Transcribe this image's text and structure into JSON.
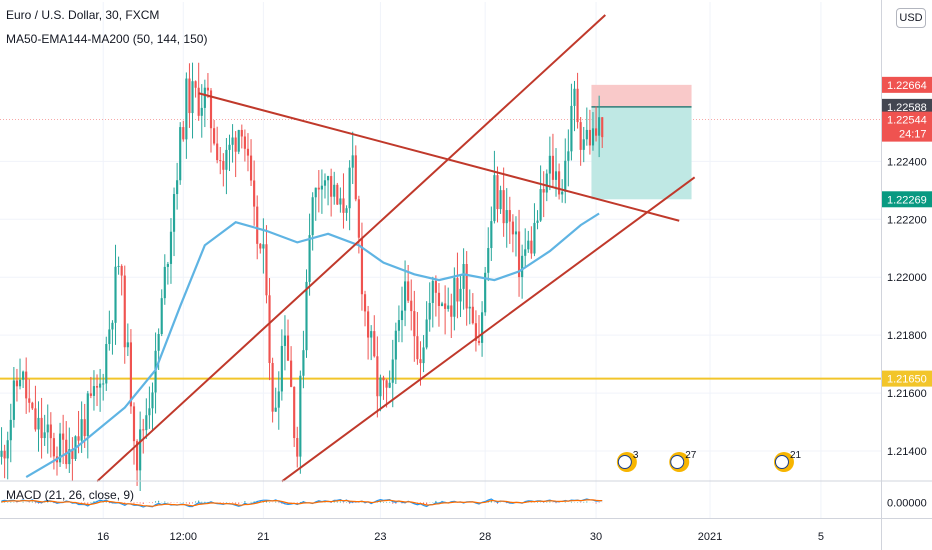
{
  "header": {
    "symbol_line": "Euro / U.S. Dollar, 30, FXCM",
    "indicator_line": "MA50-EMA144-MA200 (50, 144, 150)",
    "currency_button": "USD"
  },
  "chart_data": {
    "type": "candlestick",
    "title": "Euro / U.S. Dollar, 30, FXCM",
    "price_axis": {
      "ticks": [
        1.224,
        1.222,
        1.22,
        1.218,
        1.216,
        1.214
      ],
      "tick_labels": [
        "1.22400",
        "1.22200",
        "1.22000",
        "1.21800",
        "1.21600",
        "1.21400"
      ],
      "ylim": [
        1.213,
        1.2295
      ]
    },
    "time_axis": {
      "labels": [
        {
          "text": "16",
          "bar": 33
        },
        {
          "text": "12:00",
          "bar": 59
        },
        {
          "text": "21",
          "bar": 85
        },
        {
          "text": "23",
          "bar": 123
        },
        {
          "text": "28",
          "bar": 157
        },
        {
          "text": "30",
          "bar": 193
        },
        {
          "text": "2021",
          "bar": 230
        },
        {
          "text": "5",
          "bar": 266
        }
      ],
      "total_bars": 286
    },
    "candles": {
      "seed": 11,
      "count": 196,
      "anchors": [
        [
          0,
          1.2138
        ],
        [
          6,
          1.2168
        ],
        [
          10,
          1.215
        ],
        [
          18,
          1.214
        ],
        [
          24,
          1.2144
        ],
        [
          32,
          1.2162
        ],
        [
          38,
          1.2205
        ],
        [
          44,
          1.2138
        ],
        [
          50,
          1.217
        ],
        [
          56,
          1.223
        ],
        [
          60,
          1.2262
        ],
        [
          66,
          1.2262
        ],
        [
          72,
          1.2238
        ],
        [
          78,
          1.2255
        ],
        [
          82,
          1.2218
        ],
        [
          86,
          1.22
        ],
        [
          88,
          1.215
        ],
        [
          92,
          1.2185
        ],
        [
          96,
          1.214
        ],
        [
          100,
          1.222
        ],
        [
          104,
          1.2238
        ],
        [
          110,
          1.2222
        ],
        [
          114,
          1.2236
        ],
        [
          118,
          1.2188
        ],
        [
          122,
          1.2162
        ],
        [
          126,
          1.2158
        ],
        [
          130,
          1.2195
        ],
        [
          136,
          1.2175
        ],
        [
          140,
          1.2195
        ],
        [
          146,
          1.2192
        ],
        [
          150,
          1.22
        ],
        [
          155,
          1.218
        ],
        [
          160,
          1.223
        ],
        [
          164,
          1.2222
        ],
        [
          168,
          1.2205
        ],
        [
          172,
          1.2212
        ],
        [
          178,
          1.2238
        ],
        [
          182,
          1.2232
        ],
        [
          186,
          1.2262
        ],
        [
          188,
          1.225
        ],
        [
          192,
          1.2248
        ],
        [
          195,
          1.2254
        ]
      ],
      "up_color": "#26a69a",
      "down_color": "#ef5350"
    },
    "moving_average": {
      "name": "MA50-EMA144-MA200",
      "color": "#5fb4e3",
      "points": [
        [
          8,
          1.2131
        ],
        [
          24,
          1.2141
        ],
        [
          40,
          1.2155
        ],
        [
          50,
          1.2168
        ],
        [
          58,
          1.219
        ],
        [
          66,
          1.2211
        ],
        [
          76,
          1.2219
        ],
        [
          86,
          1.2216
        ],
        [
          96,
          1.2212
        ],
        [
          106,
          1.2215
        ],
        [
          116,
          1.2211
        ],
        [
          124,
          1.2205
        ],
        [
          134,
          1.2201
        ],
        [
          142,
          1.2199
        ],
        [
          150,
          1.2201
        ],
        [
          160,
          1.2199
        ],
        [
          168,
          1.2202
        ],
        [
          178,
          1.2209
        ],
        [
          188,
          1.2218
        ],
        [
          194,
          1.2222
        ]
      ]
    },
    "trend_lines": {
      "color": "#c0392b",
      "lines": [
        [
          [
            64,
            1.22635
          ],
          [
            220,
            1.22195
          ]
        ],
        [
          [
            31,
            1.21295
          ],
          [
            196,
            1.22905
          ]
        ],
        [
          [
            91,
            1.21295
          ],
          [
            225,
            1.22345
          ]
        ]
      ]
    },
    "horizontal_level": {
      "price": 1.2165,
      "label": "1.21650",
      "color": "#f2c52a"
    },
    "position_tool": {
      "from_bar": 192,
      "to_bar": 224,
      "entry": 1.22588,
      "stop": 1.22664,
      "target": 1.22269,
      "stop_color": "#f9c9c9",
      "target_color": "#bfe8e4",
      "entry_color": "#2e7d77"
    },
    "price_tags": [
      {
        "label": "1.22664",
        "price": 1.22664,
        "color": "#ef5350"
      },
      {
        "label": "1.22588",
        "price": 1.22588,
        "color": "#434651"
      },
      {
        "label": "1.22544",
        "price": 1.22544,
        "color": "#ef5350",
        "sub": "24:17"
      },
      {
        "label": "1.22269",
        "price": 1.22269,
        "color": "#089981"
      },
      {
        "label": "1.21650",
        "price": 1.2165,
        "color": "#f2c52a"
      }
    ],
    "events": [
      {
        "bar": 203,
        "text": "3"
      },
      {
        "bar": 220,
        "text": "27"
      },
      {
        "bar": 254,
        "text": "21"
      }
    ],
    "macd": {
      "label": "MACD (21, 26, close, 9)",
      "params": [
        21,
        26,
        9
      ],
      "ticks": [
        0
      ],
      "tick_labels": [
        "0.00000"
      ],
      "line_color": "#2196f3",
      "signal_color": "#ff6d00",
      "hist_up_color": "#26a69a",
      "hist_down_color": "#ef5350"
    },
    "colors": {
      "grid": "#f0f3fa",
      "border": "#d1d4dc",
      "axis_text": "#131722",
      "last_price_line": "#ef5350"
    }
  }
}
